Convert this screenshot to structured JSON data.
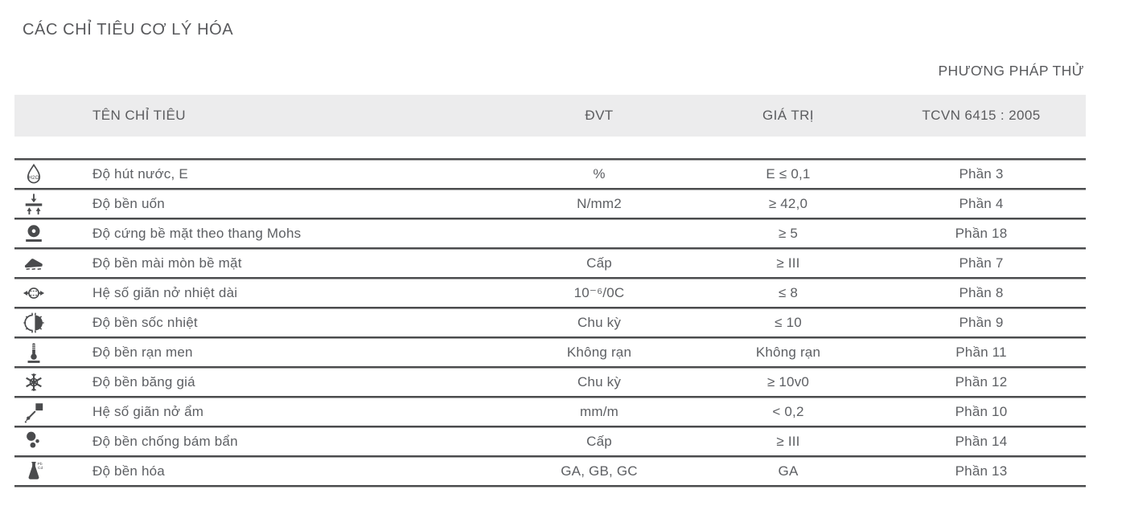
{
  "page_title": "CÁC CHỈ TIÊU CƠ LÝ HÓA",
  "table": {
    "method_header": "PHƯƠNG PHÁP THỬ",
    "columns": {
      "name": "TÊN CHỈ TIÊU",
      "unit": "ĐVT",
      "value": "GIÁ TRỊ",
      "method": "TCVN 6415 : 2005"
    },
    "rows": [
      {
        "icon": "water-absorption-icon",
        "name": "Độ hút nước, E",
        "unit": "%",
        "value": "E ≤ 0,1",
        "method": "Phần 3"
      },
      {
        "icon": "bending-strength-icon",
        "name": "Độ bền uốn",
        "unit": "N/mm2",
        "value": "≥ 42,0",
        "method": "Phần 4"
      },
      {
        "icon": "mohs-hardness-icon",
        "name": "Độ cứng bề mặt theo thang Mohs",
        "unit": "",
        "value": "≥ 5",
        "method": "Phần 18"
      },
      {
        "icon": "abrasion-icon",
        "name": "Độ bền mài mòn bề mặt",
        "unit": "Cấp",
        "value": "≥ III",
        "method": "Phần 7"
      },
      {
        "icon": "thermal-expansion-icon",
        "name": "Hệ số giãn nở nhiệt dài",
        "unit": "10⁻⁶/0C",
        "value": "≤ 8",
        "method": "Phần 8"
      },
      {
        "icon": "thermal-shock-icon",
        "name": "Độ bền sốc nhiệt",
        "unit": "Chu kỳ",
        "value": "≤ 10",
        "method": "Phần 9"
      },
      {
        "icon": "crazing-resistance-icon",
        "name": "Độ bền rạn men",
        "unit": "Không rạn",
        "value": "Không rạn",
        "method": "Phần 11"
      },
      {
        "icon": "frost-resistance-icon",
        "name": "Độ bền băng giá",
        "unit": "Chu kỳ",
        "value": "≥ 10v0",
        "method": "Phần 12"
      },
      {
        "icon": "moisture-expansion-icon",
        "name": "Hệ số giãn nở ẩm",
        "unit": "mm/m",
        "value": "< 0,2",
        "method": "Phần 10"
      },
      {
        "icon": "stain-resistance-icon",
        "name": "Độ bền chống bám bẩn",
        "unit": "Cấp",
        "value": "≥ III",
        "method": "Phần 14"
      },
      {
        "icon": "chemical-resistance-icon",
        "name": "Độ bền hóa",
        "unit": "GA, GB, GC",
        "value": "GA",
        "method": "Phần 13"
      }
    ]
  },
  "icons": {
    "water_drop_label": "H2O",
    "chemical_flask_labels": [
      "Pb",
      "Cd"
    ]
  },
  "colors": {
    "text": "#5d5f63",
    "header_band_bg": "#ececed",
    "rule_dark": "#4a4b4d",
    "rule_light": "#a8a8a8"
  }
}
